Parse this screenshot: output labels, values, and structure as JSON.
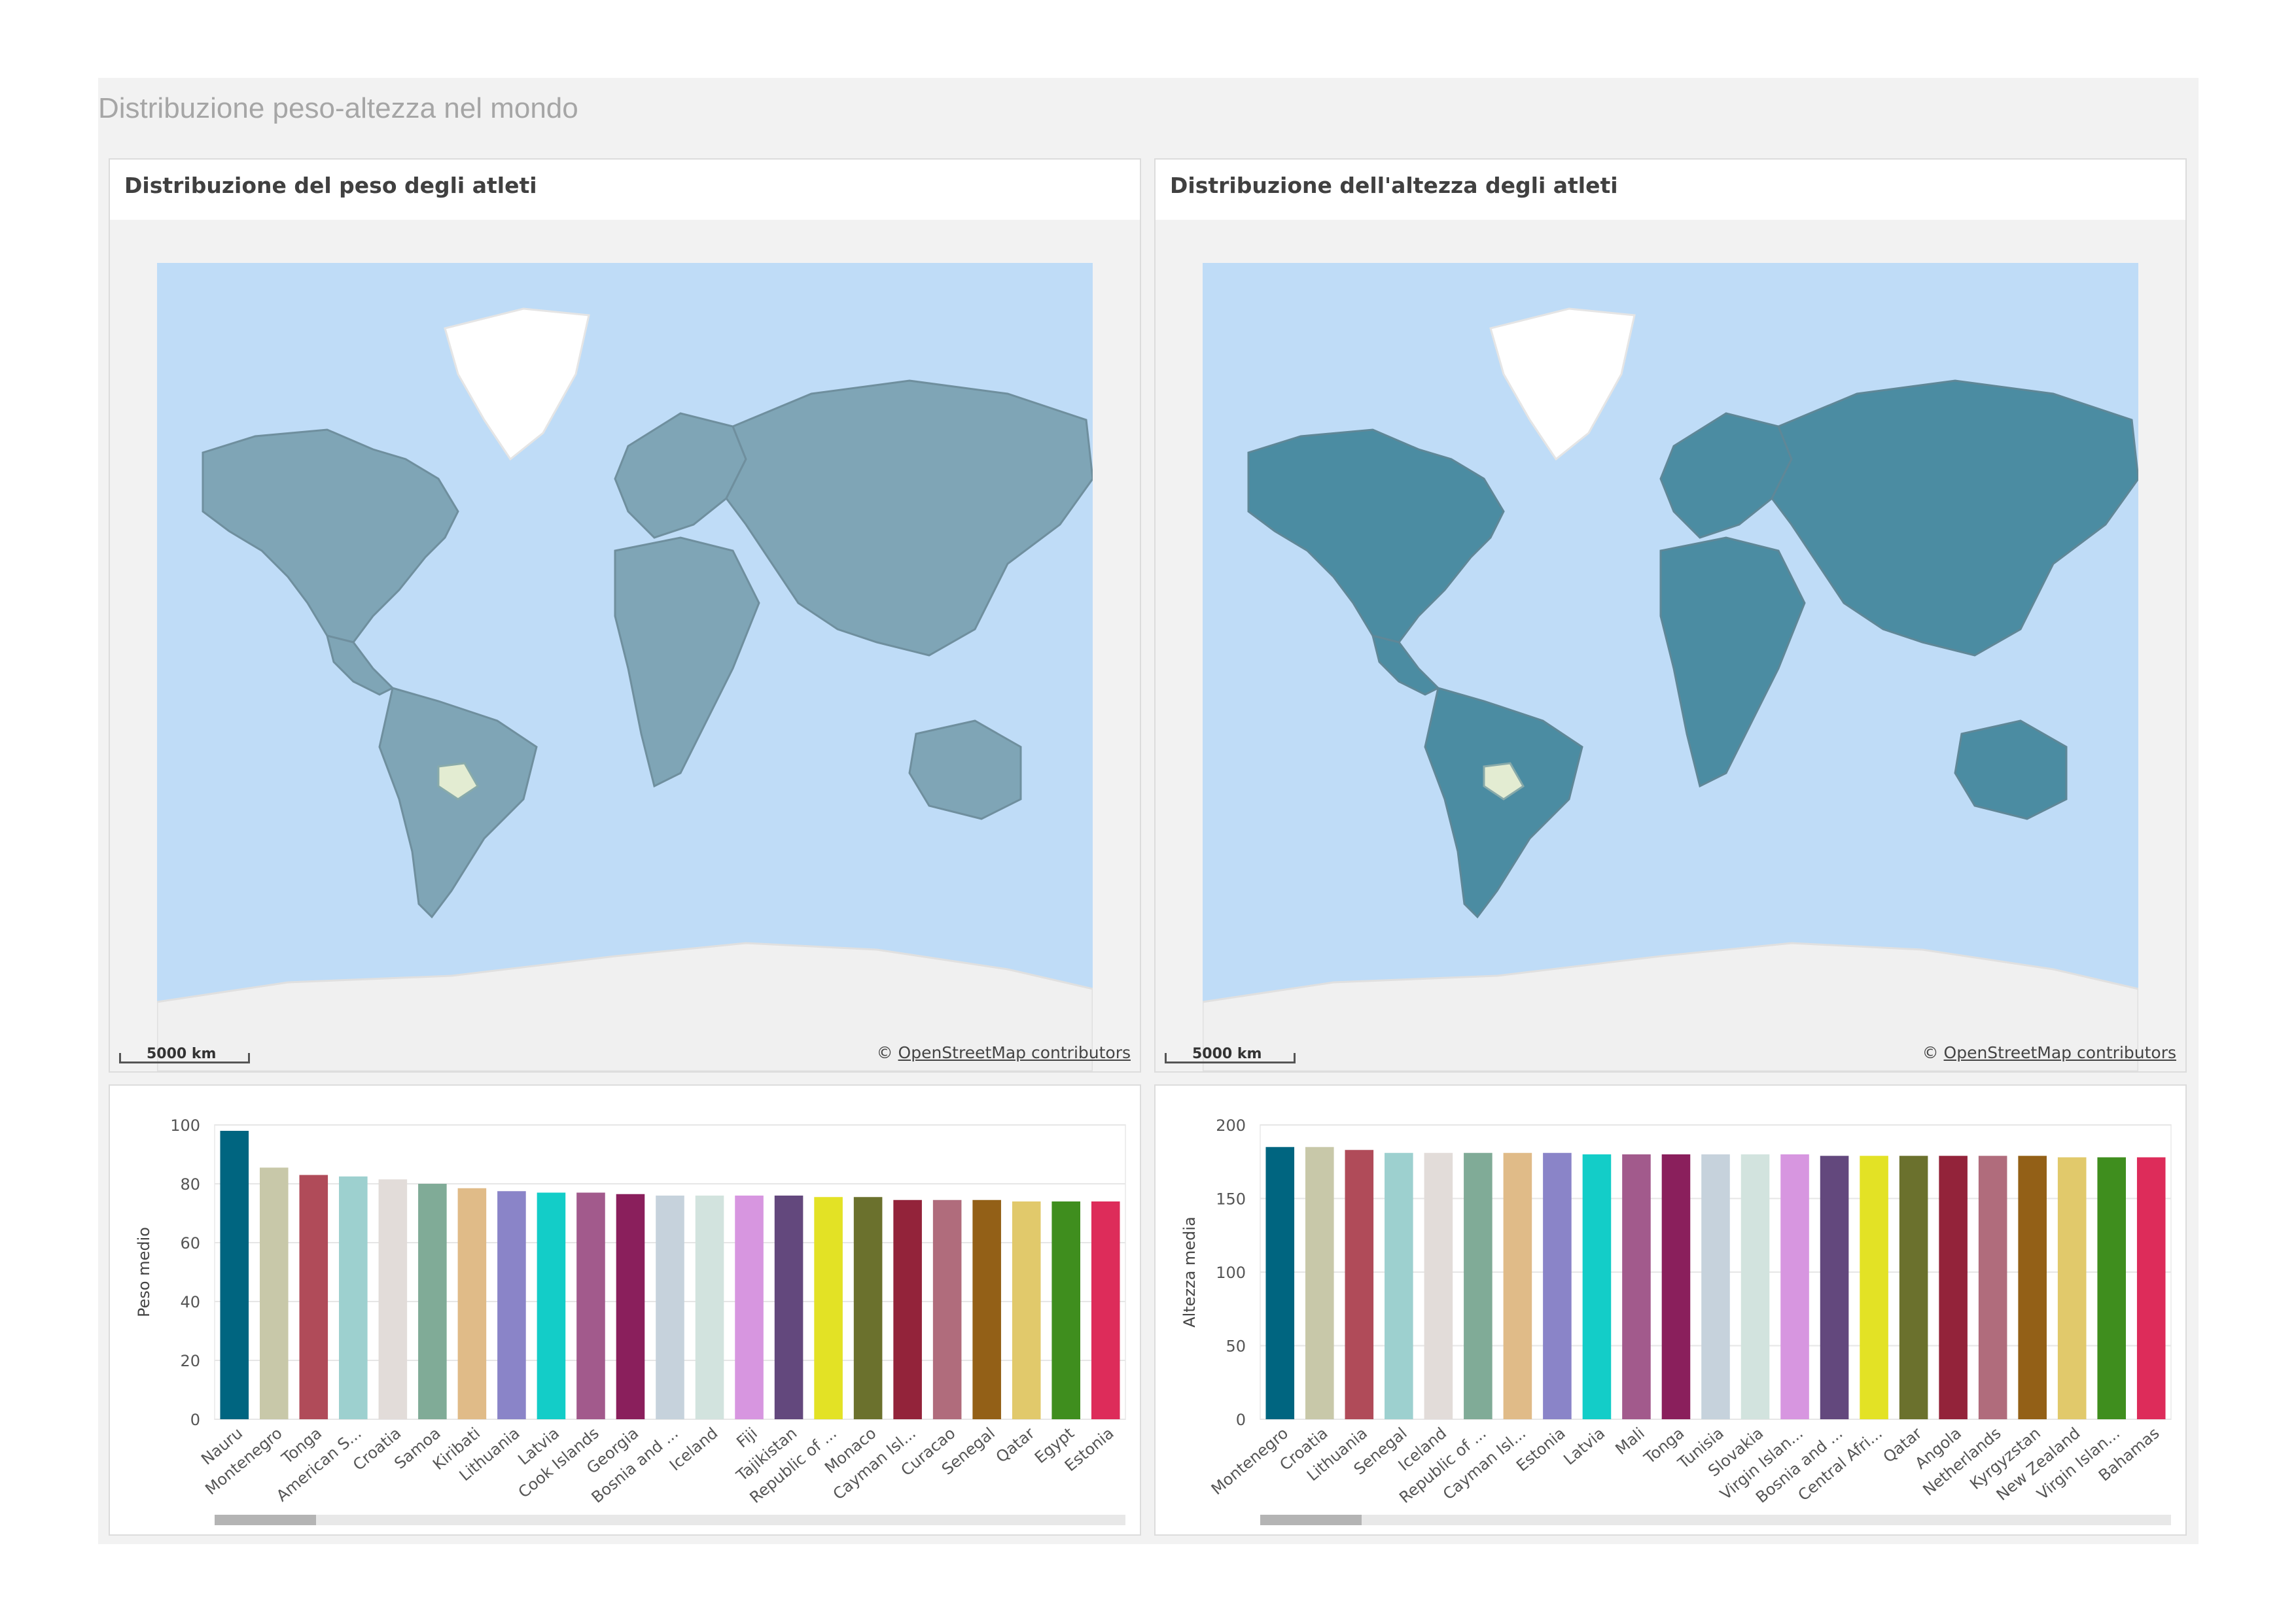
{
  "sheet": {
    "title": "Distribuzione peso-altezza nel mondo"
  },
  "maps": [
    {
      "title": "Distribuzione del peso degli atleti",
      "scale_label": "5000 km",
      "attribution_prefix": "© ",
      "attribution_link": "OpenStreetMap contributors",
      "land_color": "#7fa5b6",
      "ocean_color": "#bfdcf7"
    },
    {
      "title": "Distribuzione dell'altezza degli atleti",
      "scale_label": "5000 km",
      "attribution_prefix": "© ",
      "attribution_link": "OpenStreetMap contributors",
      "land_color": "#4b8ca2",
      "ocean_color": "#bfdcf7"
    }
  ],
  "chart_data": [
    {
      "type": "bar",
      "ylabel": "Peso medio",
      "ylim": [
        0,
        100
      ],
      "yticks": [
        0,
        20,
        40,
        60,
        80,
        100
      ],
      "categories": [
        "Nauru",
        "Montenegro",
        "Tonga",
        "American S...",
        "Croatia",
        "Samoa",
        "Kiribati",
        "Lithuania",
        "Latvia",
        "Cook Islands",
        "Georgia",
        "Bosnia and ...",
        "Iceland",
        "Fiji",
        "Tajikistan",
        "Republic of ...",
        "Monaco",
        "Cayman Isl...",
        "Curacao",
        "Senegal",
        "Qatar",
        "Egypt",
        "Estonia"
      ],
      "values": [
        98,
        85.5,
        83,
        82.5,
        81.5,
        80,
        78.5,
        77.5,
        77,
        77,
        76.5,
        76,
        76,
        76,
        76,
        75.5,
        75.5,
        74.5,
        74.5,
        74.5,
        74,
        74,
        74
      ],
      "grid": true,
      "legend": "none"
    },
    {
      "type": "bar",
      "ylabel": "Altezza media",
      "ylim": [
        0,
        200
      ],
      "yticks": [
        0,
        50,
        100,
        150,
        200
      ],
      "categories": [
        "Montenegro",
        "Croatia",
        "Lithuania",
        "Senegal",
        "Iceland",
        "Republic of ...",
        "Cayman Isl...",
        "Estonia",
        "Latvia",
        "Mali",
        "Tonga",
        "Tunisia",
        "Slovakia",
        "Virgin Islan...",
        "Bosnia and ...",
        "Central Afri...",
        "Qatar",
        "Angola",
        "Netherlands",
        "Kyrgyzstan",
        "New Zealand",
        "Virgin Islan...",
        "Bahamas"
      ],
      "values": [
        185,
        185,
        183,
        181,
        181,
        181,
        181,
        181,
        180,
        180,
        180,
        180,
        180,
        180,
        179,
        179,
        179,
        179,
        179,
        179,
        178,
        178,
        178
      ],
      "grid": true,
      "legend": "none"
    }
  ],
  "bar_colors": [
    "#006580",
    "#c8c8a9",
    "#b04b59",
    "#9dd0cf",
    "#e2dcd9",
    "#80ab97",
    "#e0bb88",
    "#8a84c8",
    "#13cdc8",
    "#a25a8c",
    "#8a1f5c",
    "#c6d2dc",
    "#d2e3de",
    "#d796e0",
    "#63487d",
    "#e3e225",
    "#6b712d",
    "#93233a",
    "#b06c7c",
    "#936017",
    "#e1c96b",
    "#3f8e1e",
    "#dd2c5a"
  ]
}
